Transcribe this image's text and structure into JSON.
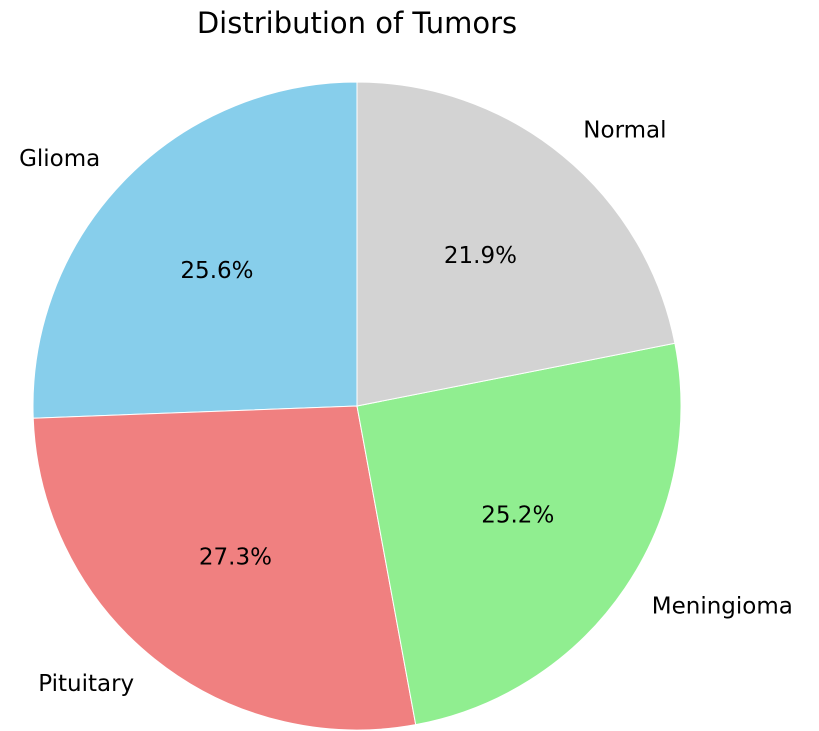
{
  "chart_data": {
    "type": "pie",
    "title": "Distribution of Tumors",
    "start_angle_deg": 90,
    "direction": "counterclockwise",
    "slices": [
      {
        "label": "Glioma",
        "value": 25.6,
        "pct_label": "25.6%",
        "color": "#87ceeb"
      },
      {
        "label": "Pituitary",
        "value": 27.3,
        "pct_label": "27.3%",
        "color": "#f08080"
      },
      {
        "label": "Meningioma",
        "value": 25.2,
        "pct_label": "25.2%",
        "color": "#90ee90"
      },
      {
        "label": "Normal",
        "value": 21.9,
        "pct_label": "21.9%",
        "color": "#d3d3d3"
      }
    ]
  }
}
